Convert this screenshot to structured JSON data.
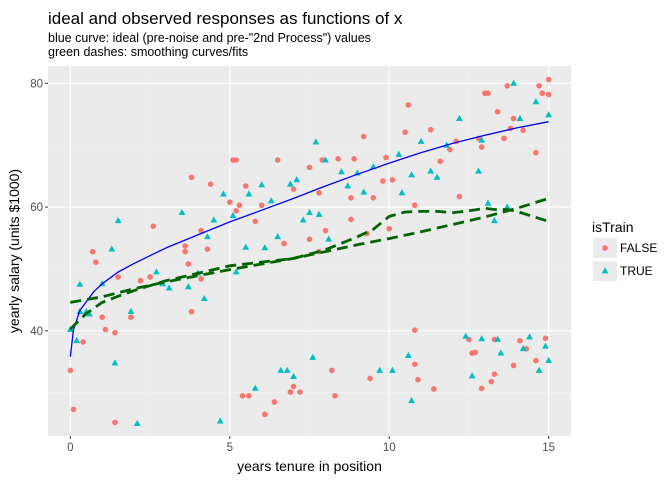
{
  "chart_data": {
    "type": "scatter",
    "title": "ideal and observed responses as functions of x",
    "subtitle_lines": [
      "blue curve: ideal (pre-noise and pre-\"2nd Process\") values",
      "green dashes: smoothing curves/fits"
    ],
    "xlabel": "years tenure in position",
    "ylabel": "yearly salary (units $1000)",
    "xlim": [
      -0.7,
      15.7
    ],
    "ylim": [
      23.0,
      82.8
    ],
    "x_ticks": [
      0,
      5,
      10,
      15
    ],
    "x_tick_labels": [
      "0",
      "5",
      "10",
      "15"
    ],
    "y_ticks": [
      40,
      60,
      80
    ],
    "y_tick_labels": [
      "40",
      "60",
      "80"
    ],
    "grid": true,
    "legend": {
      "title": "isTrain",
      "placement": "right",
      "entries": [
        {
          "label": "FALSE",
          "shape": "circle",
          "color": "#f8766d"
        },
        {
          "label": "TRUE",
          "shape": "triangle",
          "color": "#00bfc4"
        }
      ]
    },
    "series": [
      {
        "name": "FALSE",
        "shape": "circle",
        "color": "#f8766d",
        "points": [
          [
            0.0,
            33.6
          ],
          [
            0.1,
            27.3
          ],
          [
            0.4,
            38.2
          ],
          [
            0.7,
            52.8
          ],
          [
            0.8,
            51.1
          ],
          [
            1.0,
            42.2
          ],
          [
            1.1,
            40.2
          ],
          [
            1.4,
            39.7
          ],
          [
            1.4,
            25.2
          ],
          [
            1.5,
            48.7
          ],
          [
            1.9,
            42.2
          ],
          [
            2.2,
            48.1
          ],
          [
            2.5,
            48.7
          ],
          [
            2.6,
            56.9
          ],
          [
            3.6,
            53.7
          ],
          [
            3.6,
            52.8
          ],
          [
            3.7,
            50.8
          ],
          [
            3.8,
            64.8
          ],
          [
            3.8,
            43.1
          ],
          [
            4.1,
            56.2
          ],
          [
            4.1,
            48.4
          ],
          [
            4.3,
            53.2
          ],
          [
            4.4,
            63.7
          ],
          [
            5.0,
            60.8
          ],
          [
            5.1,
            67.6
          ],
          [
            5.2,
            67.6
          ],
          [
            5.2,
            59.4
          ],
          [
            5.3,
            60.3
          ],
          [
            5.4,
            29.5
          ],
          [
            5.5,
            63.4
          ],
          [
            5.6,
            29.5
          ],
          [
            5.8,
            57.7
          ],
          [
            6.0,
            60.3
          ],
          [
            6.1,
            26.5
          ],
          [
            6.4,
            28.5
          ],
          [
            6.5,
            67.6
          ],
          [
            6.7,
            54.1
          ],
          [
            6.9,
            30.1
          ],
          [
            7.0,
            62.9
          ],
          [
            7.0,
            31.0
          ],
          [
            7.2,
            30.1
          ],
          [
            7.5,
            66.4
          ],
          [
            7.5,
            54.8
          ],
          [
            7.8,
            62.3
          ],
          [
            7.8,
            52.8
          ],
          [
            7.9,
            67.6
          ],
          [
            8.0,
            56.2
          ],
          [
            8.2,
            33.6
          ],
          [
            8.3,
            29.5
          ],
          [
            8.4,
            67.8
          ],
          [
            8.8,
            61.5
          ],
          [
            8.8,
            58.0
          ],
          [
            8.9,
            67.8
          ],
          [
            9.2,
            71.4
          ],
          [
            9.3,
            55.7
          ],
          [
            9.4,
            32.3
          ],
          [
            9.5,
            61.5
          ],
          [
            9.8,
            64.2
          ],
          [
            9.9,
            68.0
          ],
          [
            10.0,
            56.5
          ],
          [
            10.1,
            64.4
          ],
          [
            10.5,
            72.1
          ],
          [
            10.6,
            76.5
          ],
          [
            10.8,
            60.3
          ],
          [
            10.8,
            40.1
          ],
          [
            10.8,
            34.6
          ],
          [
            10.9,
            32.1
          ],
          [
            11.3,
            72.5
          ],
          [
            11.4,
            30.6
          ],
          [
            11.6,
            67.4
          ],
          [
            11.9,
            69.3
          ],
          [
            12.1,
            70.6
          ],
          [
            12.2,
            61.7
          ],
          [
            12.5,
            38.6
          ],
          [
            12.6,
            36.4
          ],
          [
            12.7,
            36.5
          ],
          [
            12.8,
            71.1
          ],
          [
            12.9,
            69.7
          ],
          [
            12.9,
            30.7
          ],
          [
            13.0,
            78.4
          ],
          [
            13.1,
            78.4
          ],
          [
            13.2,
            31.8
          ],
          [
            13.3,
            33.0
          ],
          [
            13.3,
            38.6
          ],
          [
            13.4,
            75.4
          ],
          [
            13.6,
            71.1
          ],
          [
            13.7,
            79.6
          ],
          [
            13.8,
            72.7
          ],
          [
            13.9,
            74.3
          ],
          [
            13.9,
            34.4
          ],
          [
            14.1,
            38.4
          ],
          [
            14.2,
            72.4
          ],
          [
            14.3,
            37.1
          ],
          [
            14.6,
            35.2
          ],
          [
            14.6,
            68.8
          ],
          [
            14.7,
            79.6
          ],
          [
            14.8,
            78.4
          ],
          [
            14.9,
            38.8
          ],
          [
            15.0,
            80.6
          ],
          [
            15.0,
            78.2
          ]
        ]
      },
      {
        "name": "TRUE",
        "shape": "triangle",
        "color": "#00bfc4",
        "points": [
          [
            0.0,
            40.2
          ],
          [
            0.2,
            38.4
          ],
          [
            0.3,
            47.5
          ],
          [
            0.3,
            43.1
          ],
          [
            0.5,
            43.1
          ],
          [
            0.6,
            42.7
          ],
          [
            1.0,
            47.6
          ],
          [
            1.3,
            53.2
          ],
          [
            1.4,
            34.8
          ],
          [
            1.5,
            57.8
          ],
          [
            1.9,
            43.1
          ],
          [
            2.1,
            25.0
          ],
          [
            2.7,
            49.5
          ],
          [
            2.9,
            47.6
          ],
          [
            3.1,
            46.9
          ],
          [
            3.5,
            59.1
          ],
          [
            3.7,
            47.1
          ],
          [
            4.0,
            49.3
          ],
          [
            4.2,
            45.2
          ],
          [
            4.3,
            55.2
          ],
          [
            4.5,
            57.9
          ],
          [
            4.7,
            25.4
          ],
          [
            4.8,
            62.1
          ],
          [
            5.1,
            58.6
          ],
          [
            5.2,
            49.5
          ],
          [
            5.5,
            53.5
          ],
          [
            5.6,
            62.1
          ],
          [
            5.8,
            30.7
          ],
          [
            6.0,
            63.6
          ],
          [
            6.1,
            53.4
          ],
          [
            6.3,
            61.0
          ],
          [
            6.5,
            55.2
          ],
          [
            6.6,
            33.6
          ],
          [
            6.8,
            33.6
          ],
          [
            6.9,
            63.7
          ],
          [
            7.0,
            32.6
          ],
          [
            7.1,
            64.4
          ],
          [
            7.3,
            57.9
          ],
          [
            7.5,
            59.1
          ],
          [
            7.6,
            35.7
          ],
          [
            7.7,
            70.5
          ],
          [
            7.8,
            58.8
          ],
          [
            8.0,
            67.6
          ],
          [
            8.1,
            54.8
          ],
          [
            8.5,
            65.7
          ],
          [
            8.7,
            63.4
          ],
          [
            9.0,
            65.5
          ],
          [
            9.2,
            62.4
          ],
          [
            9.5,
            66.5
          ],
          [
            9.7,
            33.6
          ],
          [
            10.1,
            33.6
          ],
          [
            10.3,
            68.5
          ],
          [
            10.4,
            62.3
          ],
          [
            10.6,
            36.0
          ],
          [
            10.7,
            65.2
          ],
          [
            10.7,
            28.7
          ],
          [
            11.0,
            70.6
          ],
          [
            11.3,
            65.8
          ],
          [
            11.5,
            64.8
          ],
          [
            11.8,
            70.0
          ],
          [
            12.2,
            74.3
          ],
          [
            12.4,
            39.1
          ],
          [
            12.6,
            32.7
          ],
          [
            12.8,
            65.8
          ],
          [
            12.9,
            70.8
          ],
          [
            12.9,
            38.7
          ],
          [
            13.1,
            60.6
          ],
          [
            13.3,
            57.8
          ],
          [
            13.4,
            38.6
          ],
          [
            13.5,
            36.4
          ],
          [
            13.7,
            60.0
          ],
          [
            13.9,
            80.0
          ],
          [
            14.1,
            74.3
          ],
          [
            14.2,
            37.1
          ],
          [
            14.4,
            39.0
          ],
          [
            14.6,
            77.0
          ],
          [
            14.7,
            33.6
          ],
          [
            14.9,
            37.5
          ],
          [
            15.0,
            35.2
          ],
          [
            15.0,
            74.9
          ]
        ]
      }
    ],
    "lines": [
      {
        "name": "ideal",
        "color": "#0000ff",
        "dashed": false,
        "points": [
          [
            0.0,
            35.8
          ],
          [
            0.1,
            40.2
          ],
          [
            0.3,
            43.3
          ],
          [
            0.5,
            44.7
          ],
          [
            0.75,
            46.4
          ],
          [
            1.0,
            47.6
          ],
          [
            1.5,
            49.5
          ],
          [
            2.0,
            50.9
          ],
          [
            3.0,
            53.4
          ],
          [
            4.0,
            55.5
          ],
          [
            5.0,
            57.6
          ],
          [
            6.0,
            59.5
          ],
          [
            7.0,
            61.4
          ],
          [
            8.0,
            63.4
          ],
          [
            9.0,
            65.3
          ],
          [
            10.0,
            67.1
          ],
          [
            11.0,
            68.8
          ],
          [
            12.0,
            70.3
          ],
          [
            13.0,
            71.6
          ],
          [
            14.0,
            72.8
          ],
          [
            15.0,
            73.8
          ]
        ]
      },
      {
        "name": "fit-1",
        "color": "#006400",
        "dashed": true,
        "points": [
          [
            0.0,
            40.3
          ],
          [
            0.5,
            42.8
          ],
          [
            1.0,
            44.6
          ],
          [
            1.5,
            45.6
          ],
          [
            2.0,
            46.5
          ],
          [
            3.0,
            48.1
          ],
          [
            4.0,
            49.3
          ],
          [
            5.0,
            50.5
          ],
          [
            6.0,
            51.1
          ],
          [
            7.0,
            51.7
          ],
          [
            8.0,
            53.1
          ],
          [
            9.0,
            55.2
          ],
          [
            9.5,
            56.4
          ],
          [
            10.0,
            58.5
          ],
          [
            10.5,
            59.2
          ],
          [
            11.0,
            59.3
          ],
          [
            11.5,
            59.3
          ],
          [
            12.0,
            59.1
          ],
          [
            12.5,
            59.4
          ],
          [
            13.0,
            59.8
          ],
          [
            13.3,
            59.6
          ],
          [
            13.7,
            59.6
          ],
          [
            14.0,
            59.3
          ],
          [
            14.5,
            58.5
          ],
          [
            14.8,
            58.0
          ],
          [
            15.0,
            57.7
          ]
        ]
      },
      {
        "name": "fit-2",
        "color": "#006400",
        "dashed": true,
        "points": [
          [
            0.0,
            44.6
          ],
          [
            1.0,
            45.5
          ],
          [
            2.0,
            46.8
          ],
          [
            3.0,
            47.9
          ],
          [
            4.0,
            48.9
          ],
          [
            5.0,
            49.9
          ],
          [
            6.0,
            50.8
          ],
          [
            7.0,
            51.7
          ],
          [
            8.0,
            52.8
          ],
          [
            9.0,
            53.9
          ],
          [
            10.0,
            54.9
          ],
          [
            11.0,
            56.0
          ],
          [
            12.0,
            57.2
          ],
          [
            13.0,
            58.4
          ],
          [
            14.0,
            59.8
          ],
          [
            15.0,
            61.4
          ]
        ]
      }
    ]
  }
}
